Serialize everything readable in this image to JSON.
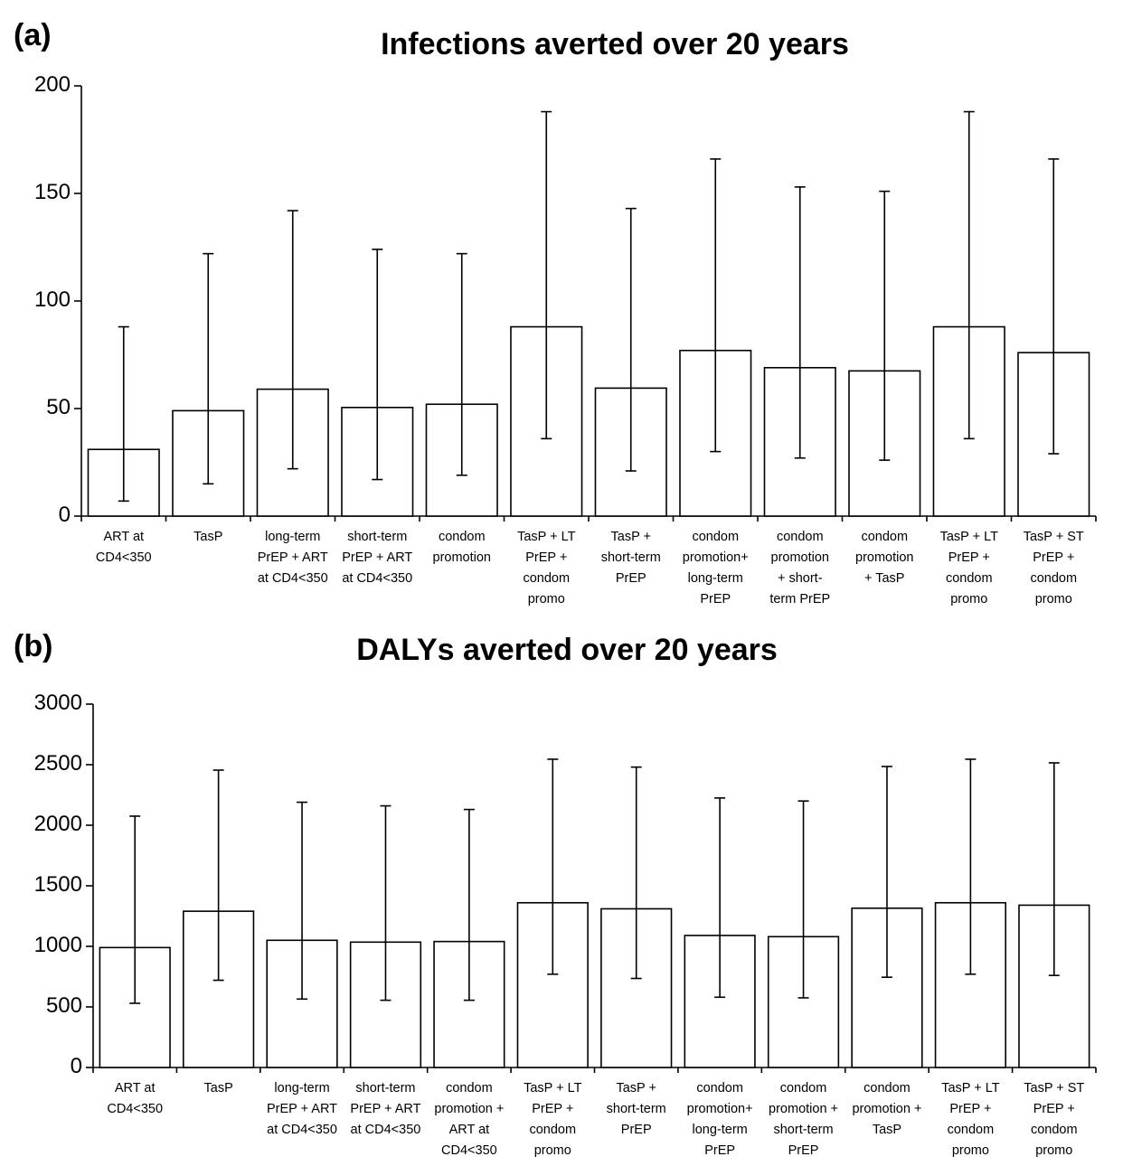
{
  "chart_data": [
    {
      "type": "bar",
      "panel": "(a)",
      "title": "Infections averted over 20 years",
      "categories": [
        "ART at\nCD4<350",
        "TasP",
        "long-term\nPrEP + ART\nat CD4<350",
        "short-term\nPrEP + ART\nat CD4<350",
        "condom\npromotion",
        "TasP + LT\nPrEP +\ncondom\npromo",
        "TasP +\nshort-term\nPrEP",
        "condom\npromotion+\nlong-term\nPrEP",
        "condom\npromotion\n+ short-\nterm PrEP",
        "condom\npromotion\n+ TasP",
        "TasP + LT\nPrEP +\ncondom\npromo",
        "TasP + ST\nPrEP +\ncondom\npromo"
      ],
      "values": [
        31,
        49,
        59,
        50.5,
        52,
        88,
        59.5,
        77,
        69,
        67.5,
        88,
        76
      ],
      "lower": [
        7,
        15,
        22,
        17,
        19,
        36,
        21,
        30,
        27,
        26,
        36,
        29
      ],
      "upper": [
        88,
        122,
        142,
        124,
        122,
        188,
        143,
        166,
        153,
        151,
        188,
        166
      ],
      "color": "#ffffff",
      "ylim": [
        0,
        200
      ],
      "yticks": [
        0,
        50,
        100,
        150,
        200
      ]
    },
    {
      "type": "bar",
      "panel": "(b)",
      "title": "DALYs averted over 20 years",
      "categories": [
        "ART at\nCD4<350",
        "TasP",
        "long-term\nPrEP + ART\nat CD4<350",
        "short-term\nPrEP + ART\nat CD4<350",
        "condom\npromotion +\nART at\nCD4<350",
        "TasP + LT\nPrEP +\ncondom\npromo",
        "TasP +\nshort-term\nPrEP",
        "condom\npromotion+\nlong-term\nPrEP",
        "condom\npromotion +\nshort-term\nPrEP",
        "condom\npromotion +\nTasP",
        "TasP + LT\nPrEP +\ncondom\npromo",
        "TasP + ST\nPrEP +\ncondom\npromo"
      ],
      "values": [
        990,
        1290,
        1050,
        1035,
        1040,
        1360,
        1310,
        1090,
        1080,
        1315,
        1360,
        1340
      ],
      "lower": [
        530,
        720,
        565,
        555,
        555,
        770,
        735,
        580,
        575,
        745,
        770,
        760
      ],
      "upper": [
        2075,
        2455,
        2190,
        2160,
        2130,
        2545,
        2480,
        2225,
        2200,
        2485,
        2545,
        2515
      ],
      "color": "#ffffff",
      "ylim": [
        0,
        3000
      ],
      "yticks": [
        0,
        500,
        1000,
        1500,
        2000,
        2500,
        3000
      ]
    }
  ]
}
